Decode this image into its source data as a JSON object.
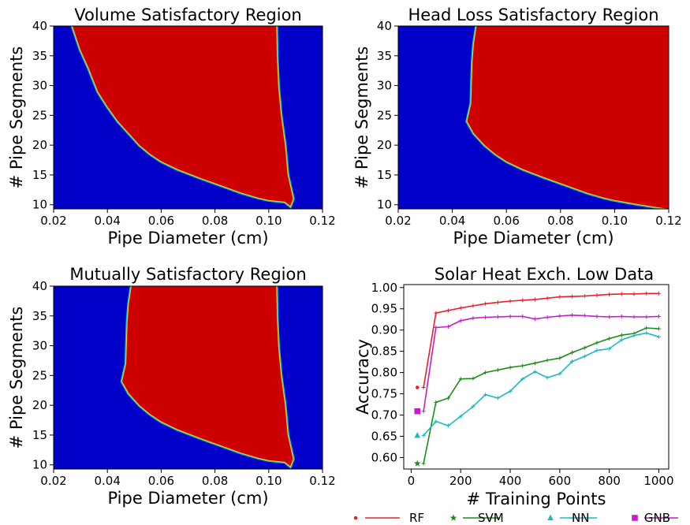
{
  "colors": {
    "unsatisfactory": "#0000c8",
    "satisfactory": "#cc0000",
    "boundary_outer": "#00c8c8",
    "boundary_inner": "#ffd400",
    "RF": "#e8202a",
    "SVM": "#1e8a1e",
    "NN": "#1fb8c4",
    "GNB": "#c21fc8"
  },
  "chart_data": [
    {
      "type": "heatmap",
      "title": "Volume Satisfactory Region",
      "xlabel": "Pipe Diameter (cm)",
      "ylabel": "# Pipe Segments",
      "xlim": [
        0.02,
        0.12
      ],
      "ylim": [
        9.3,
        40
      ],
      "xticks": [
        "0.02",
        "0.04",
        "0.06",
        "0.08",
        "0.10",
        "0.12"
      ],
      "xtick_values": [
        0.02,
        0.04,
        0.06,
        0.08,
        0.1,
        0.12
      ],
      "yticks": [
        "10",
        "15",
        "20",
        "25",
        "30",
        "35",
        "40"
      ],
      "ytick_values": [
        10,
        15,
        20,
        25,
        30,
        35,
        40
      ],
      "satisfactory_region": [
        [
          0.027,
          40
        ],
        [
          0.03,
          36
        ],
        [
          0.033,
          33
        ],
        [
          0.0365,
          29
        ],
        [
          0.04,
          26.5
        ],
        [
          0.044,
          24
        ],
        [
          0.048,
          22
        ],
        [
          0.052,
          20
        ],
        [
          0.056,
          18.5
        ],
        [
          0.06,
          17.3
        ],
        [
          0.066,
          16
        ],
        [
          0.074,
          14.6
        ],
        [
          0.082,
          13.3
        ],
        [
          0.09,
          12
        ],
        [
          0.096,
          11.2
        ],
        [
          0.1,
          10.8
        ],
        [
          0.106,
          10.5
        ],
        [
          0.108,
          9.8
        ],
        [
          0.109,
          11
        ],
        [
          0.108,
          13
        ],
        [
          0.107,
          15
        ],
        [
          0.106,
          20
        ],
        [
          0.1045,
          25
        ],
        [
          0.1035,
          30
        ],
        [
          0.103,
          35
        ],
        [
          0.1028,
          40
        ]
      ]
    },
    {
      "type": "heatmap",
      "title": "Head Loss Satisfactory Region",
      "xlabel": "Pipe Diameter (cm)",
      "ylabel": "# Pipe Segments",
      "xlim": [
        0.02,
        0.12
      ],
      "ylim": [
        9.3,
        40
      ],
      "xticks": [
        "0.02",
        "0.04",
        "0.06",
        "0.08",
        "0.10",
        "0.12"
      ],
      "xtick_values": [
        0.02,
        0.04,
        0.06,
        0.08,
        0.1,
        0.12
      ],
      "yticks": [
        "10",
        "15",
        "20",
        "25",
        "30",
        "35",
        "40"
      ],
      "ytick_values": [
        10,
        15,
        20,
        25,
        30,
        35,
        40
      ],
      "satisfactory_region": [
        [
          0.049,
          40
        ],
        [
          0.048,
          37
        ],
        [
          0.0475,
          34
        ],
        [
          0.0472,
          30
        ],
        [
          0.047,
          27
        ],
        [
          0.0455,
          24
        ],
        [
          0.048,
          22
        ],
        [
          0.052,
          20
        ],
        [
          0.056,
          18.5
        ],
        [
          0.06,
          17.3
        ],
        [
          0.066,
          16
        ],
        [
          0.074,
          14.6
        ],
        [
          0.082,
          13.3
        ],
        [
          0.09,
          12
        ],
        [
          0.096,
          11.2
        ],
        [
          0.1,
          10.8
        ],
        [
          0.106,
          10.3
        ],
        [
          0.11,
          10
        ],
        [
          0.12,
          9.3
        ],
        [
          0.12,
          40
        ]
      ]
    },
    {
      "type": "heatmap",
      "title": "Mutually Satisfactory Region",
      "xlabel": "Pipe Diameter (cm)",
      "ylabel": "# Pipe Segments",
      "xlim": [
        0.02,
        0.12
      ],
      "ylim": [
        9.3,
        40
      ],
      "xticks": [
        "0.02",
        "0.04",
        "0.06",
        "0.08",
        "0.10",
        "0.12"
      ],
      "xtick_values": [
        0.02,
        0.04,
        0.06,
        0.08,
        0.1,
        0.12
      ],
      "yticks": [
        "10",
        "15",
        "20",
        "25",
        "30",
        "35",
        "40"
      ],
      "ytick_values": [
        10,
        15,
        20,
        25,
        30,
        35,
        40
      ],
      "satisfactory_region": [
        [
          0.049,
          40
        ],
        [
          0.048,
          37
        ],
        [
          0.0475,
          34
        ],
        [
          0.0472,
          30
        ],
        [
          0.047,
          27
        ],
        [
          0.0455,
          24
        ],
        [
          0.048,
          22
        ],
        [
          0.052,
          20
        ],
        [
          0.056,
          18.5
        ],
        [
          0.06,
          17.3
        ],
        [
          0.066,
          16
        ],
        [
          0.074,
          14.6
        ],
        [
          0.082,
          13.3
        ],
        [
          0.09,
          12
        ],
        [
          0.096,
          11.2
        ],
        [
          0.1,
          10.8
        ],
        [
          0.106,
          10.5
        ],
        [
          0.108,
          9.8
        ],
        [
          0.109,
          11
        ],
        [
          0.108,
          13
        ],
        [
          0.107,
          15
        ],
        [
          0.106,
          20
        ],
        [
          0.1045,
          25
        ],
        [
          0.1035,
          30
        ],
        [
          0.103,
          35
        ],
        [
          0.1028,
          40
        ]
      ]
    },
    {
      "type": "line",
      "title": "Solar Heat Exch. Low Data",
      "xlabel": "# Training Points",
      "ylabel": "Accuracy",
      "xlim": [
        -30,
        1040
      ],
      "ylim": [
        0.573,
        1.007
      ],
      "xticks": [
        "0",
        "200",
        "400",
        "600",
        "800",
        "1000"
      ],
      "xtick_values": [
        0,
        200,
        400,
        600,
        800,
        1000
      ],
      "yticks": [
        "0.60",
        "0.65",
        "0.70",
        "0.75",
        "0.80",
        "0.85",
        "0.90",
        "0.95",
        "1.00"
      ],
      "ytick_values": [
        0.6,
        0.65,
        0.7,
        0.75,
        0.8,
        0.85,
        0.9,
        0.95,
        1.0
      ],
      "x": [
        50,
        100,
        150,
        200,
        250,
        300,
        350,
        400,
        450,
        500,
        550,
        600,
        650,
        700,
        750,
        800,
        850,
        900,
        950,
        1000
      ],
      "series": [
        {
          "name": "RF",
          "marker": "dot",
          "baseline": 0.765,
          "values": [
            0.765,
            0.94,
            0.946,
            0.952,
            0.957,
            0.962,
            0.965,
            0.968,
            0.97,
            0.972,
            0.975,
            0.978,
            0.979,
            0.98,
            0.982,
            0.984,
            0.985,
            0.985,
            0.986,
            0.986
          ]
        },
        {
          "name": "SVM",
          "marker": "star",
          "baseline": 0.586,
          "values": [
            0.586,
            0.73,
            0.74,
            0.785,
            0.786,
            0.8,
            0.806,
            0.812,
            0.816,
            0.822,
            0.829,
            0.834,
            0.847,
            0.858,
            0.87,
            0.88,
            0.888,
            0.892,
            0.905,
            0.903
          ]
        },
        {
          "name": "NN",
          "marker": "triangle",
          "baseline": 0.652,
          "values": [
            0.652,
            0.685,
            0.675,
            0.697,
            0.72,
            0.748,
            0.74,
            0.756,
            0.785,
            0.802,
            0.788,
            0.797,
            0.826,
            0.838,
            0.852,
            0.856,
            0.877,
            0.887,
            0.893,
            0.884
          ]
        },
        {
          "name": "GNB",
          "marker": "square",
          "baseline": 0.709,
          "values": [
            0.709,
            0.906,
            0.908,
            0.922,
            0.928,
            0.93,
            0.931,
            0.932,
            0.932,
            0.926,
            0.93,
            0.933,
            0.935,
            0.934,
            0.932,
            0.931,
            0.932,
            0.931,
            0.931,
            0.932
          ]
        }
      ],
      "legend": {
        "placement": "bottom",
        "entries": [
          "RF",
          "SVM",
          "NN",
          "GNB"
        ]
      }
    }
  ]
}
